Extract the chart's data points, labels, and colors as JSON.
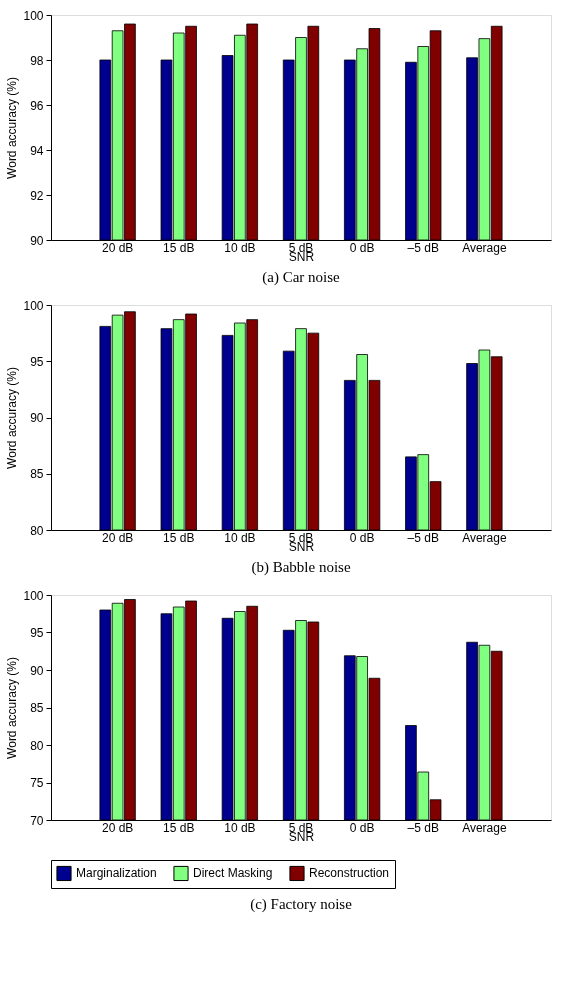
{
  "chart_data": [
    {
      "type": "bar",
      "title": "(a)  Car noise",
      "xlabel": "SNR",
      "ylabel": "Word accuracy (%)",
      "categories": [
        "20 dB",
        "15 dB",
        "10 dB",
        "5 dB",
        "0 dB",
        "–5 dB",
        "Average"
      ],
      "ylim": [
        90,
        100
      ],
      "yticks": [
        90,
        92,
        94,
        96,
        98,
        100
      ],
      "series": [
        {
          "color": "#00008f",
          "values": [
            98.0,
            98.0,
            98.2,
            98.0,
            98.0,
            97.9,
            98.1
          ]
        },
        {
          "color": "#80ff80",
          "values": [
            99.3,
            99.2,
            99.1,
            99.0,
            98.5,
            98.6,
            98.95
          ]
        },
        {
          "color": "#800000",
          "values": [
            99.6,
            99.5,
            99.6,
            99.5,
            99.4,
            99.3,
            99.5
          ]
        }
      ]
    },
    {
      "type": "bar",
      "title": "(b)  Babble noise",
      "xlabel": "SNR",
      "ylabel": "Word accuracy (%)",
      "categories": [
        "20 dB",
        "15 dB",
        "10 dB",
        "5 dB",
        "0 dB",
        "–5 dB",
        "Average"
      ],
      "ylim": [
        80,
        100
      ],
      "yticks": [
        80,
        85,
        90,
        95,
        100
      ],
      "series": [
        {
          "color": "#00008f",
          "values": [
            98.1,
            97.9,
            97.3,
            95.9,
            93.3,
            86.5,
            94.8
          ]
        },
        {
          "color": "#80ff80",
          "values": [
            99.1,
            98.7,
            98.4,
            97.9,
            95.6,
            86.7,
            96.0
          ]
        },
        {
          "color": "#800000",
          "values": [
            99.4,
            99.2,
            98.7,
            97.5,
            93.3,
            84.3,
            95.4
          ]
        }
      ]
    },
    {
      "type": "bar",
      "title": "(c)  Factory noise",
      "xlabel": "SNR",
      "ylabel": "Word accuracy (%)",
      "categories": [
        "20 dB",
        "15 dB",
        "10 dB",
        "5 dB",
        "0 dB",
        "–5 dB",
        "Average"
      ],
      "ylim": [
        70,
        100
      ],
      "yticks": [
        70,
        75,
        80,
        85,
        90,
        95,
        100
      ],
      "legend": "bottom left",
      "series": [
        {
          "name": "Marginalization",
          "color": "#00008f",
          "values": [
            98.0,
            97.5,
            96.9,
            95.3,
            91.9,
            82.6,
            93.7
          ]
        },
        {
          "name": "Direct Masking",
          "color": "#80ff80",
          "values": [
            98.9,
            98.4,
            97.8,
            96.6,
            91.8,
            76.4,
            93.3
          ]
        },
        {
          "name": "Reconstruction",
          "color": "#800000",
          "values": [
            99.4,
            99.2,
            98.5,
            96.4,
            88.9,
            72.7,
            92.5
          ]
        }
      ]
    }
  ]
}
